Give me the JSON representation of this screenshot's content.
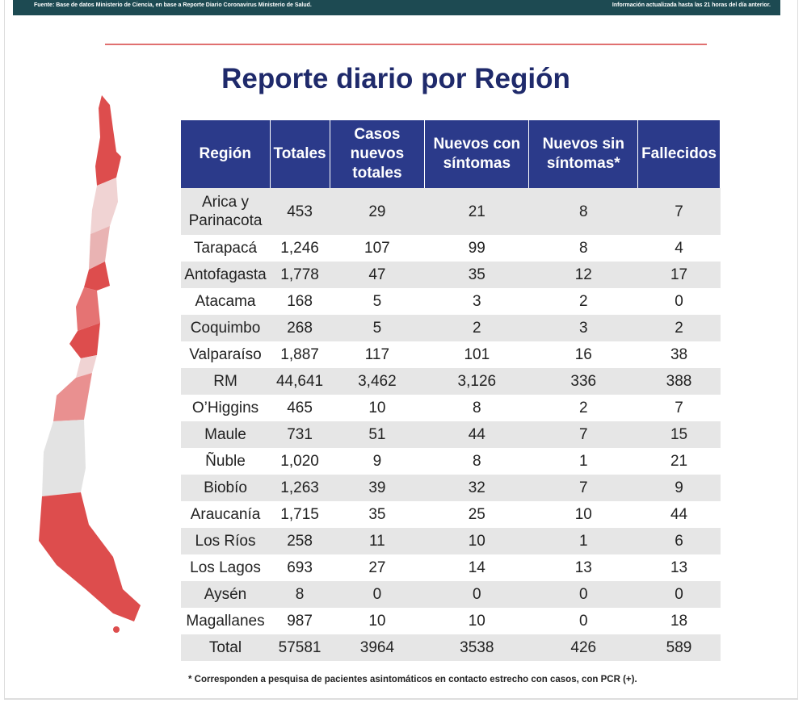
{
  "header": {
    "source": "Fuente: Base de datos Ministerio de Ciencia, en base a Reporte Diario Coronavirus Ministerio de Salud.",
    "updated": "Información actualizada hasta las 21 horas del día anterior."
  },
  "title": "Reporte diario por Región",
  "table": {
    "columns": [
      "Región",
      "Totales",
      "Casos nuevos totales",
      "Nuevos con síntomas",
      "Nuevos sin síntomas*",
      "Fallecidos"
    ],
    "rows": [
      [
        "Arica y Parinacota",
        "453",
        "29",
        "21",
        "8",
        "7"
      ],
      [
        "Tarapacá",
        "1,246",
        "107",
        "99",
        "8",
        "4"
      ],
      [
        "Antofagasta",
        "1,778",
        "47",
        "35",
        "12",
        "17"
      ],
      [
        "Atacama",
        "168",
        "5",
        "3",
        "2",
        "0"
      ],
      [
        "Coquimbo",
        "268",
        "5",
        "2",
        "3",
        "2"
      ],
      [
        "Valparaíso",
        "1,887",
        "117",
        "101",
        "16",
        "38"
      ],
      [
        "RM",
        "44,641",
        "3,462",
        "3,126",
        "336",
        "388"
      ],
      [
        "O’Higgins",
        "465",
        "10",
        "8",
        "2",
        "7"
      ],
      [
        "Maule",
        "731",
        "51",
        "44",
        "7",
        "15"
      ],
      [
        "Ñuble",
        "1,020",
        "9",
        "8",
        "1",
        "21"
      ],
      [
        "Biobío",
        "1,263",
        "39",
        "32",
        "7",
        "9"
      ],
      [
        "Araucanía",
        "1,715",
        "35",
        "25",
        "10",
        "44"
      ],
      [
        "Los Ríos",
        "258",
        "11",
        "10",
        "1",
        "6"
      ],
      [
        "Los Lagos",
        "693",
        "27",
        "14",
        "13",
        "13"
      ],
      [
        "Aysén",
        "8",
        "0",
        "0",
        "0",
        "0"
      ],
      [
        "Magallanes",
        "987",
        "10",
        "10",
        "0",
        "18"
      ],
      [
        "Total",
        "57581",
        "3964",
        "3538",
        "426",
        "589"
      ]
    ]
  },
  "footnote": "* Corresponden a pesquisa de pacientes asintomáticos en contacto estrecho con casos, con PCR (+)."
}
